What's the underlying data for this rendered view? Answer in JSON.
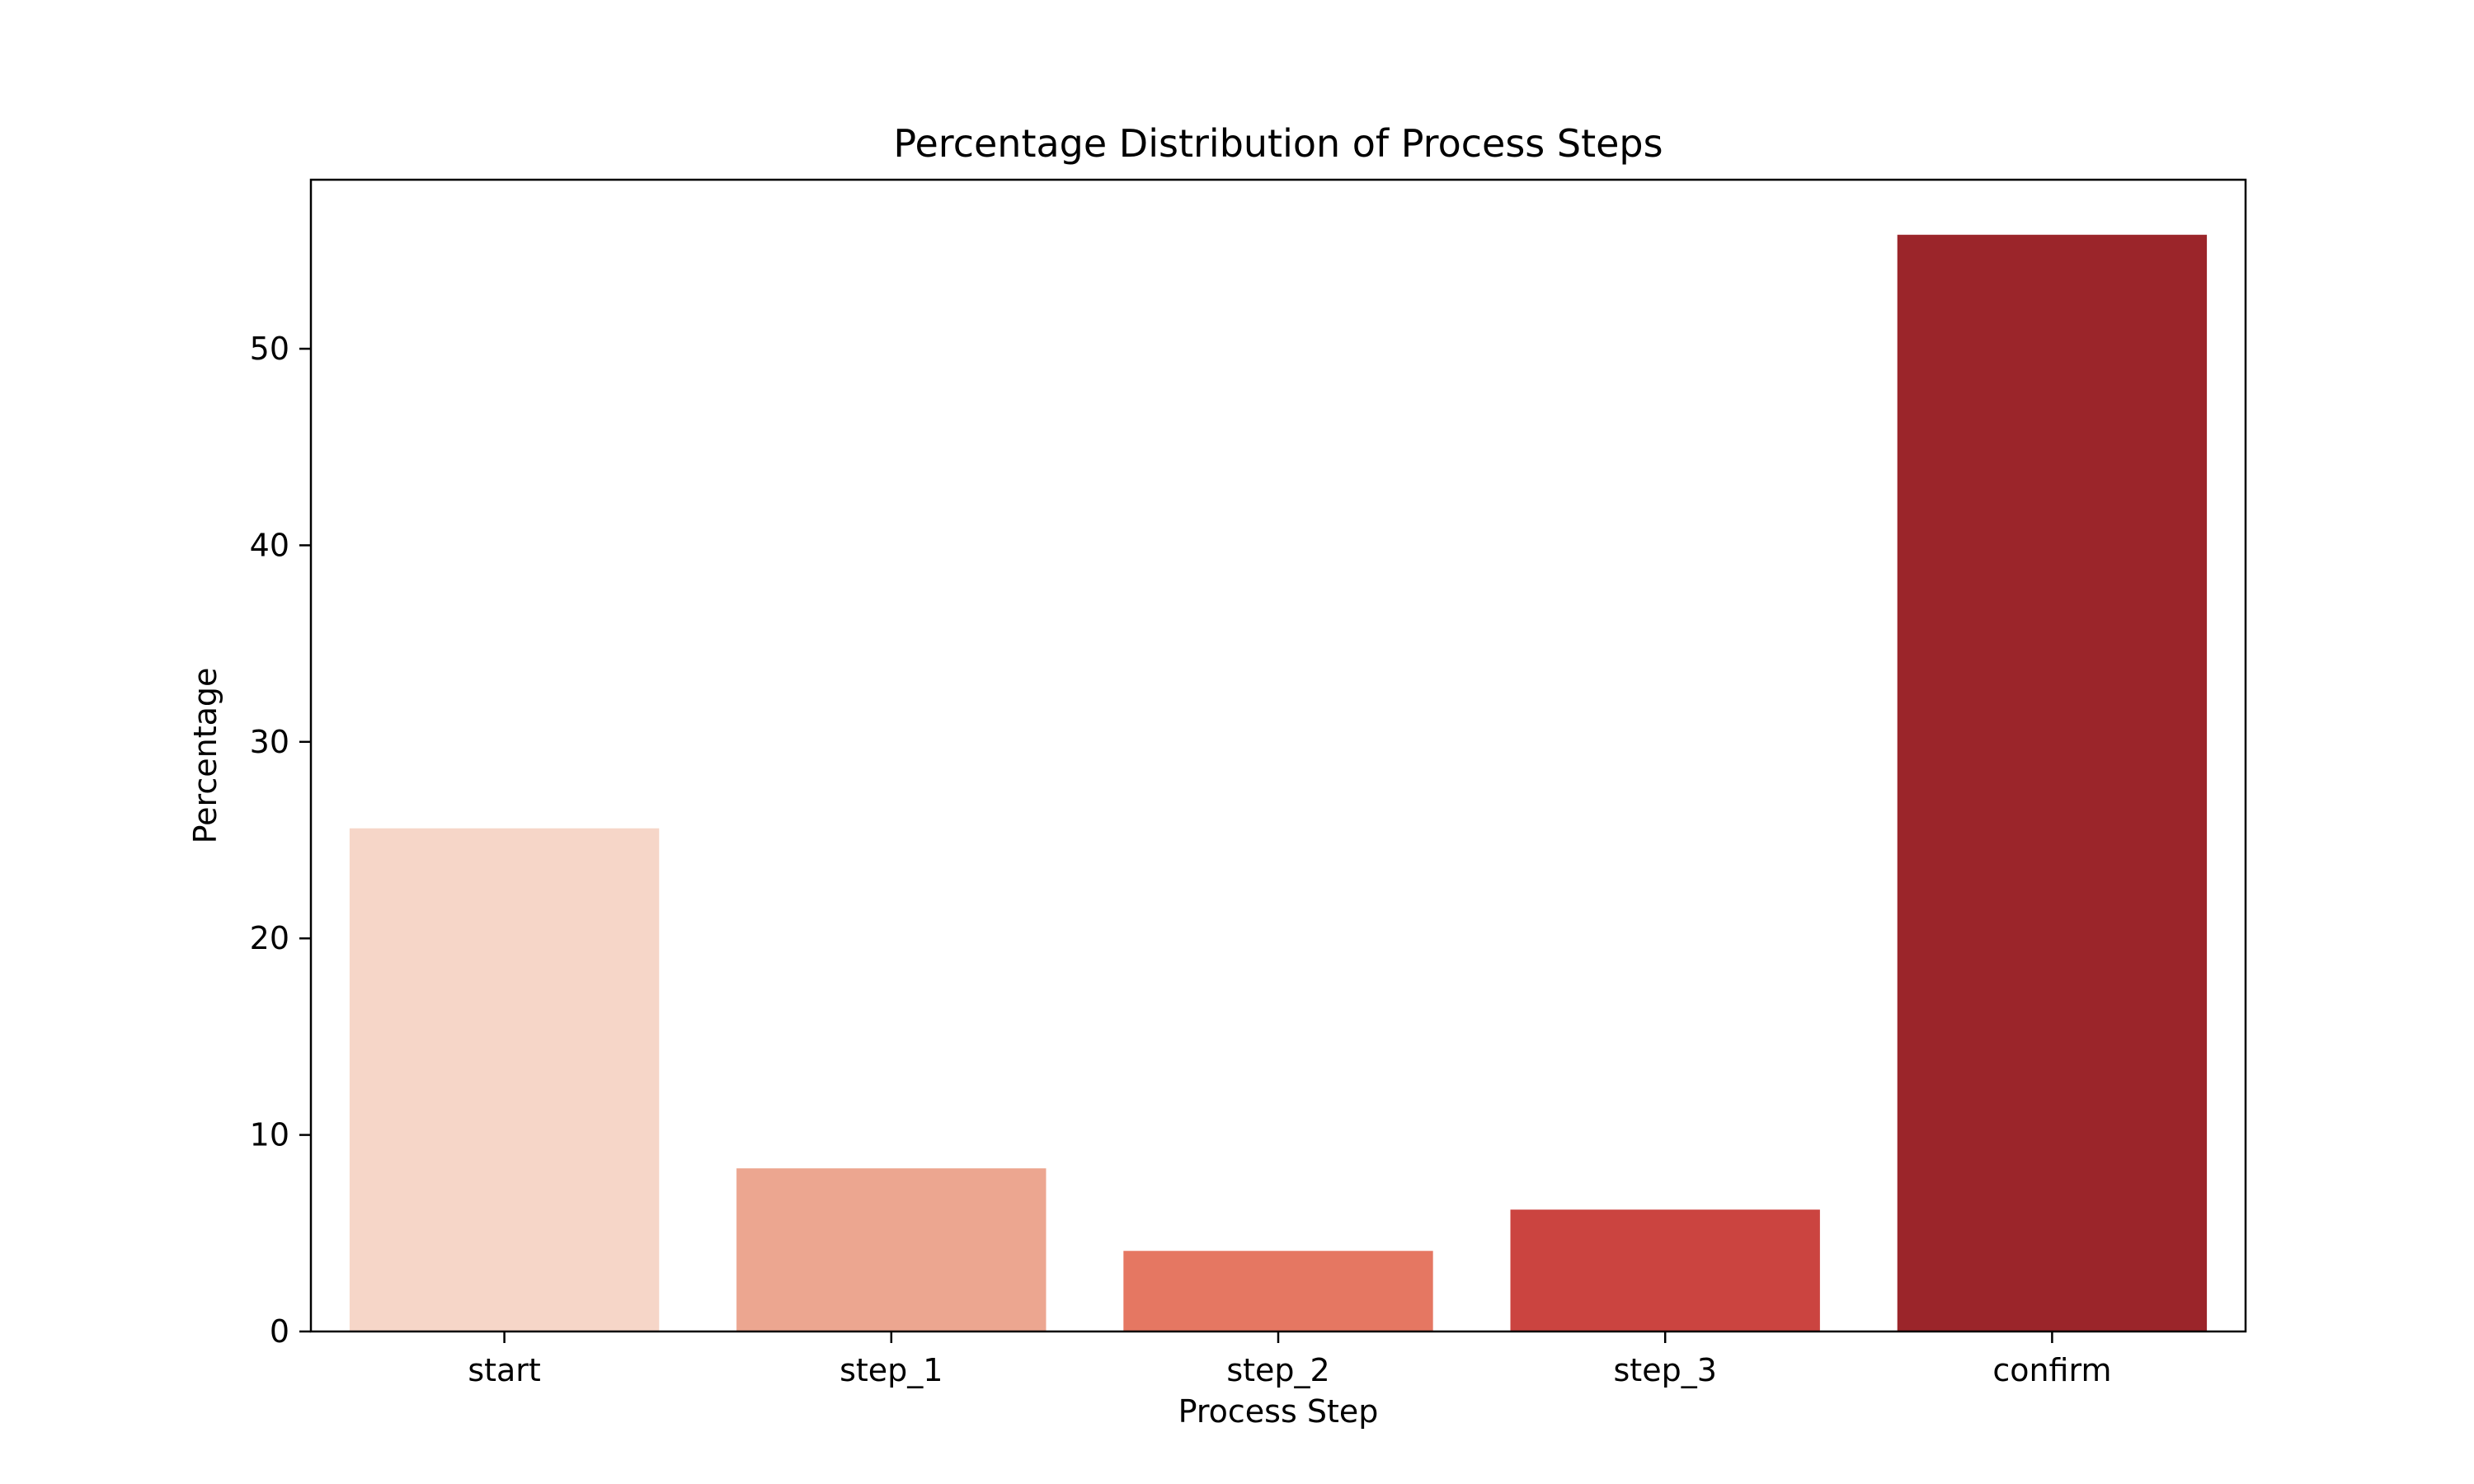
{
  "chart_data": {
    "type": "bar",
    "title": "Percentage Distribution of Process Steps",
    "xlabel": "Process Step",
    "ylabel": "Percentage",
    "categories": [
      "start",
      "step_1",
      "step_2",
      "step_3",
      "confirm"
    ],
    "values": [
      25.6,
      8.3,
      4.1,
      6.2,
      55.8
    ],
    "colors": [
      "#f6d6c8",
      "#eca690",
      "#e57762",
      "#cb4440",
      "#9b252a"
    ],
    "ylim": [
      0,
      58.6
    ],
    "yticks": [
      0,
      10,
      20,
      30,
      40,
      50
    ],
    "grid": false,
    "legend": "none"
  }
}
